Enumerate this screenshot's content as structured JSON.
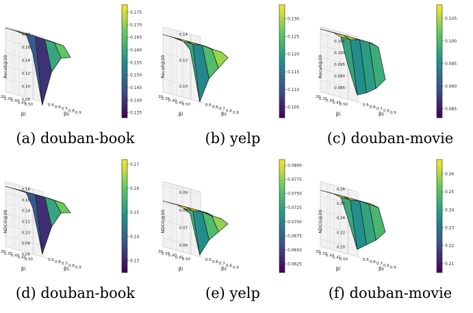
{
  "colormap": [
    "#440154",
    "#3b528b",
    "#21918c",
    "#5ec962",
    "#fde725"
  ],
  "edge_color": "#1a1a1a",
  "chart_data": [
    {
      "type": "surface",
      "caption": "(a) douban-book",
      "zlabel": "Recall@20",
      "xlabel": "βl",
      "ylabel": "βs",
      "x_ticks": [
        "0.30",
        "0.35",
        "0.40",
        "0.45",
        "0.50"
      ],
      "y_ticks": [
        "0.5",
        "0.6",
        "0.7",
        "0.8",
        "0.9"
      ],
      "z_ticks": [
        "0.08",
        "0.10",
        "0.12",
        "0.14",
        "0.16",
        "0.18"
      ],
      "zlim": [
        0.08,
        0.18
      ],
      "colorbar_ticks": [
        "0.135",
        "0.140",
        "0.145",
        "0.150",
        "0.155",
        "0.160",
        "0.165",
        "0.170",
        "0.175"
      ],
      "colorbar_range": [
        0.133,
        0.178
      ],
      "z_grid": [
        [
          0.178,
          0.178,
          0.176,
          0.176,
          0.176
        ],
        [
          0.178,
          0.178,
          0.177,
          0.176,
          0.176
        ],
        [
          0.178,
          0.178,
          0.177,
          0.177,
          0.176
        ],
        [
          0.178,
          0.178,
          0.177,
          0.176,
          0.175
        ],
        [
          0.15,
          0.075,
          0.13,
          0.155,
          0.16
        ]
      ]
    },
    {
      "type": "surface",
      "caption": "(b) yelp",
      "zlabel": "Recall@20",
      "xlabel": "βl",
      "ylabel": "βs",
      "x_ticks": [
        "0.30",
        "0.35",
        "0.40",
        "0.45",
        "0.50"
      ],
      "y_ticks": [
        "0.5",
        "0.6",
        "0.7",
        "0.8",
        "0.9"
      ],
      "z_ticks": [
        "0.10",
        "0.12",
        "0.14"
      ],
      "zlim": [
        0.09,
        0.14
      ],
      "colorbar_ticks": [
        "0.105",
        "0.110",
        "0.115",
        "0.120",
        "0.125",
        "0.130"
      ],
      "colorbar_range": [
        0.102,
        0.134
      ],
      "z_grid": [
        [
          0.134,
          0.134,
          0.133,
          0.133,
          0.133
        ],
        [
          0.134,
          0.134,
          0.134,
          0.133,
          0.133
        ],
        [
          0.134,
          0.134,
          0.134,
          0.134,
          0.133
        ],
        [
          0.133,
          0.133,
          0.134,
          0.133,
          0.133
        ],
        [
          0.128,
          0.09,
          0.11,
          0.12,
          0.13
        ]
      ]
    },
    {
      "type": "surface",
      "caption": "(c) douban-movie",
      "zlabel": "Recall@20",
      "xlabel": "βl",
      "ylabel": "βs",
      "x_ticks": [
        "0.30",
        "0.35",
        "0.40",
        "0.45",
        "0.50"
      ],
      "y_ticks": [
        "0.5",
        "0.6",
        "0.7",
        "0.8",
        "0.9"
      ],
      "z_ticks": [
        "0.085",
        "0.090",
        "0.095",
        "0.100",
        "0.105"
      ],
      "zlim": [
        0.08,
        0.108
      ],
      "colorbar_ticks": [
        "0.085",
        "0.090",
        "0.095",
        "0.100",
        "0.105"
      ],
      "colorbar_range": [
        0.083,
        0.108
      ],
      "z_grid": [
        [
          0.107,
          0.107,
          0.107,
          0.107,
          0.107
        ],
        [
          0.107,
          0.107,
          0.107,
          0.107,
          0.107
        ],
        [
          0.107,
          0.107,
          0.107,
          0.107,
          0.107
        ],
        [
          0.106,
          0.106,
          0.107,
          0.107,
          0.106
        ],
        [
          0.095,
          0.083,
          0.085,
          0.088,
          0.093
        ]
      ]
    },
    {
      "type": "surface",
      "caption": "(d) douban-book",
      "zlabel": "NDCG@20",
      "xlabel": "βl",
      "ylabel": "βs",
      "x_ticks": [
        "0.30",
        "0.35",
        "0.40",
        "0.45",
        "0.50"
      ],
      "y_ticks": [
        "0.5",
        "0.6",
        "0.7",
        "0.8",
        "0.9"
      ],
      "z_ticks": [
        "0.06",
        "0.08",
        "0.10",
        "0.12",
        "0.14",
        "0.16",
        "0.18"
      ],
      "zlim": [
        0.06,
        0.18
      ],
      "colorbar_ticks": [
        "0.13",
        "0.14",
        "0.15",
        "0.16",
        "0.17"
      ],
      "colorbar_range": [
        0.125,
        0.172
      ],
      "z_grid": [
        [
          0.171,
          0.171,
          0.17,
          0.17,
          0.17
        ],
        [
          0.171,
          0.171,
          0.171,
          0.17,
          0.17
        ],
        [
          0.171,
          0.171,
          0.171,
          0.171,
          0.17
        ],
        [
          0.171,
          0.171,
          0.171,
          0.17,
          0.169
        ],
        [
          0.145,
          0.065,
          0.12,
          0.15,
          0.155
        ]
      ]
    },
    {
      "type": "surface",
      "caption": "(e) yelp",
      "zlabel": "NDCG@20",
      "xlabel": "βl",
      "ylabel": "βs",
      "x_ticks": [
        "0.30",
        "0.35",
        "0.40",
        "0.45",
        "0.50"
      ],
      "y_ticks": [
        "0.5",
        "0.6",
        "0.7",
        "0.8",
        "0.9"
      ],
      "z_ticks": [
        "0.06",
        "0.07",
        "0.08",
        "0.09"
      ],
      "zlim": [
        0.055,
        0.092
      ],
      "colorbar_ticks": [
        "0.0625",
        "0.0650",
        "0.0675",
        "0.0700",
        "0.0725",
        "0.0750",
        "0.0775",
        "0.0800"
      ],
      "colorbar_range": [
        0.061,
        0.081
      ],
      "z_grid": [
        [
          0.081,
          0.081,
          0.081,
          0.081,
          0.081
        ],
        [
          0.081,
          0.081,
          0.081,
          0.081,
          0.081
        ],
        [
          0.081,
          0.081,
          0.081,
          0.081,
          0.08
        ],
        [
          0.08,
          0.08,
          0.081,
          0.08,
          0.08
        ],
        [
          0.078,
          0.056,
          0.066,
          0.072,
          0.078
        ]
      ]
    },
    {
      "type": "surface",
      "caption": "(f) douban-movie",
      "zlabel": "NDCG@20",
      "xlabel": "βl",
      "ylabel": "βs",
      "x_ticks": [
        "0.30",
        "0.35",
        "0.40",
        "0.45",
        "0.50"
      ],
      "y_ticks": [
        "0.5",
        "0.6",
        "0.7",
        "0.8",
        "0.9"
      ],
      "z_ticks": [
        "0.20",
        "0.22",
        "0.24",
        "0.26",
        "0.28"
      ],
      "zlim": [
        0.19,
        0.28
      ],
      "colorbar_ticks": [
        "0.21",
        "0.22",
        "0.23",
        "0.24",
        "0.25",
        "0.26"
      ],
      "colorbar_range": [
        0.205,
        0.268
      ],
      "z_grid": [
        [
          0.268,
          0.268,
          0.268,
          0.268,
          0.268
        ],
        [
          0.268,
          0.268,
          0.268,
          0.268,
          0.268
        ],
        [
          0.268,
          0.268,
          0.268,
          0.268,
          0.268
        ],
        [
          0.266,
          0.266,
          0.268,
          0.267,
          0.266
        ],
        [
          0.24,
          0.2,
          0.21,
          0.22,
          0.235
        ]
      ]
    }
  ]
}
